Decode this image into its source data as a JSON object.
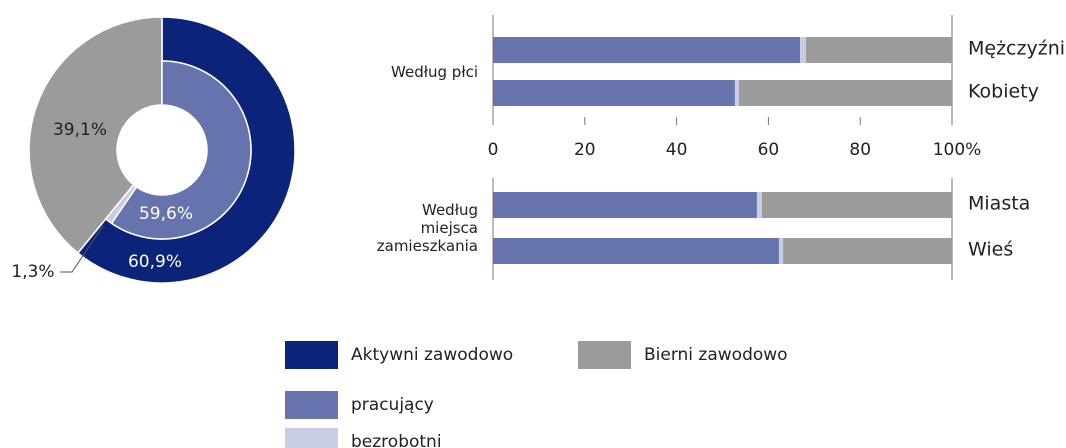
{
  "chart_data": [
    {
      "type": "pie",
      "outer": {
        "values": [
          60.9,
          39.1
        ],
        "value_labels": [
          "60,9%",
          "39,1%"
        ],
        "colors": [
          "#0b2379",
          "#9b9b9b"
        ]
      },
      "inner": {
        "values": [
          59.6,
          1.3
        ],
        "value_labels": [
          "59,6%",
          "1,3%"
        ],
        "colors": [
          "#6673ad",
          "#c8cde3"
        ]
      },
      "legend": [
        {
          "name": "Aktywni zawodowo",
          "color": "#0b2379"
        },
        {
          "name": "Bierni zawodowo",
          "color": "#9b9b9b"
        },
        {
          "name": "pracujący",
          "color": "#6673ad"
        },
        {
          "name": "bezrobotni",
          "color": "#c8cde3"
        }
      ]
    },
    {
      "type": "bar",
      "orientation": "horizontal",
      "stacked": true,
      "group_label": "Według płci",
      "categories": [
        "Mężczyźni",
        "Kobiety"
      ],
      "series": [
        {
          "color": "#6673ad",
          "values": [
            66.9,
            52.7
          ]
        },
        {
          "color": "#c8cde3",
          "values": [
            1.3,
            0.9
          ]
        },
        {
          "color": "#9b9b9b",
          "values": [
            31.8,
            46.4
          ]
        }
      ],
      "xlim": [
        0,
        100
      ],
      "xticks": [
        0,
        20,
        40,
        60,
        80,
        {
          "value": 100,
          "label": "100%"
        }
      ]
    },
    {
      "type": "bar",
      "orientation": "horizontal",
      "stacked": true,
      "group_label": "Według miejsca zamieszkania",
      "categories": [
        "Miasta",
        "Wieś"
      ],
      "series": [
        {
          "color": "#6673ad",
          "values": [
            57.5,
            62.3
          ]
        },
        {
          "color": "#c8cde3",
          "values": [
            1.1,
            0.9
          ]
        },
        {
          "color": "#9b9b9b",
          "values": [
            41.4,
            36.8
          ]
        }
      ],
      "xlim": [
        0,
        100
      ]
    }
  ]
}
